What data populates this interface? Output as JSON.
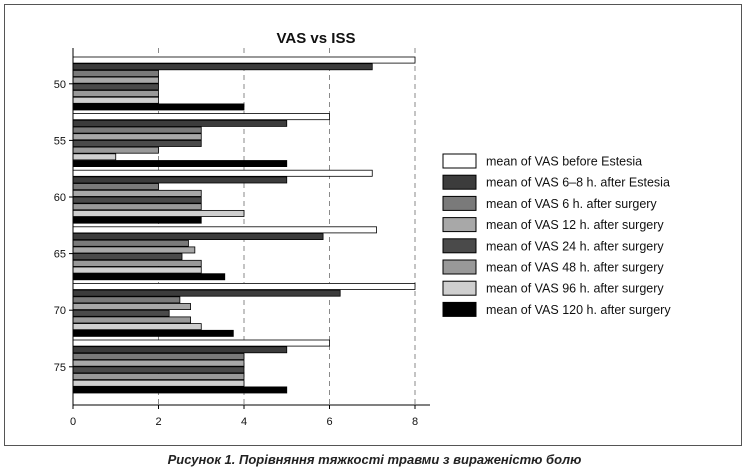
{
  "caption": "Рисунок 1. Порівняння тяжкості травми з вираженістю болю",
  "chart_data": {
    "type": "bar",
    "orientation": "horizontal",
    "title": "VAS vs ISS",
    "categories": [
      "50",
      "55",
      "60",
      "65",
      "70",
      "75"
    ],
    "xlim": [
      0,
      8
    ],
    "xticks": [
      "0",
      "2",
      "4",
      "6",
      "8"
    ],
    "grid": "vertical dashed",
    "legend_position": "right",
    "series": [
      {
        "name": "mean of VAS before Estesia",
        "color": "#ffffff",
        "values": [
          8,
          6,
          7,
          7.1,
          8,
          6
        ]
      },
      {
        "name": "mean of VAS 6–8 h. after Estesia",
        "color": "#3c3c3c",
        "values": [
          7,
          5,
          5,
          5.85,
          6.25,
          5
        ]
      },
      {
        "name": "mean of VAS 6 h. after surgery",
        "color": "#7a7a7a",
        "values": [
          2,
          3,
          2,
          2.7,
          2.5,
          4
        ]
      },
      {
        "name": "mean of VAS 12 h. after surgery",
        "color": "#a8a8a8",
        "values": [
          2,
          3,
          3,
          2.85,
          2.75,
          4
        ]
      },
      {
        "name": "mean of VAS 24 h. after surgery",
        "color": "#4a4a4a",
        "values": [
          2,
          3,
          3,
          2.55,
          2.25,
          4
        ]
      },
      {
        "name": "mean of VAS 48 h. after surgery",
        "color": "#999999",
        "values": [
          2,
          2,
          3,
          3,
          2.75,
          4
        ]
      },
      {
        "name": "mean of VAS 96 h. after surgery",
        "color": "#cfcfcf",
        "values": [
          2,
          1,
          4,
          3,
          3,
          4
        ]
      },
      {
        "name": "mean of VAS 120 h. after surgery",
        "color": "#000000",
        "values": [
          4,
          5,
          3,
          3.55,
          3.75,
          5
        ]
      }
    ]
  }
}
